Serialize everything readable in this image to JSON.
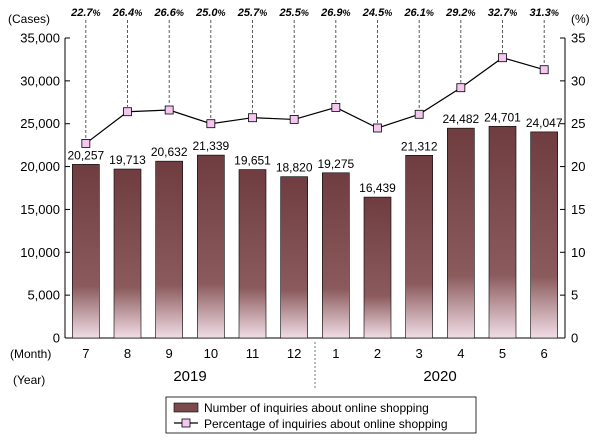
{
  "chart_data": {
    "type": "bar",
    "categories": [
      "7",
      "8",
      "9",
      "10",
      "11",
      "12",
      "1",
      "2",
      "3",
      "4",
      "5",
      "6"
    ],
    "years": [
      {
        "label": "2019",
        "months": [
          "7",
          "8",
          "9",
          "10",
          "11",
          "12"
        ]
      },
      {
        "label": "2020",
        "months": [
          "1",
          "2",
          "3",
          "4",
          "5",
          "6"
        ]
      }
    ],
    "x_row_label_month": "(Month)",
    "x_row_label_year": "(Year)",
    "left_axis": {
      "unit": "(Cases)",
      "min": 0,
      "max": 35000,
      "ticks": [
        "0",
        "5,000",
        "10,000",
        "15,000",
        "20,000",
        "25,000",
        "30,000",
        "35,000"
      ]
    },
    "right_axis": {
      "unit": "(%)",
      "min": 0,
      "max": 35,
      "ticks": [
        "0",
        "5",
        "10",
        "15",
        "20",
        "25",
        "30",
        "35"
      ]
    },
    "series": [
      {
        "name": "Number of inquiries about online shopping",
        "type": "bar",
        "axis": "left",
        "values": [
          20257,
          19713,
          20632,
          21339,
          19651,
          18820,
          19275,
          16439,
          21312,
          24482,
          24701,
          24047
        ],
        "labels": [
          "20,257",
          "19,713",
          "20,632",
          "21,339",
          "19,651",
          "18,820",
          "19,275",
          "16,439",
          "21,312",
          "24,482",
          "24,701",
          "24,047"
        ],
        "color": "#7b4a4a"
      },
      {
        "name": "Percentage of inquiries about online shopping",
        "type": "line",
        "axis": "right",
        "values": [
          22.7,
          26.4,
          26.6,
          25.0,
          25.7,
          25.5,
          26.9,
          24.5,
          26.1,
          29.2,
          32.7,
          31.3
        ],
        "labels": [
          "22.7",
          "26.4",
          "26.6",
          "25.0",
          "25.7",
          "25.5",
          "26.9",
          "24.5",
          "26.1",
          "29.2",
          "32.7",
          "31.3"
        ],
        "label_suffix": "%",
        "marker_color": "#f4c6f0"
      }
    ],
    "legend": {
      "placement": "bottom-center"
    }
  }
}
